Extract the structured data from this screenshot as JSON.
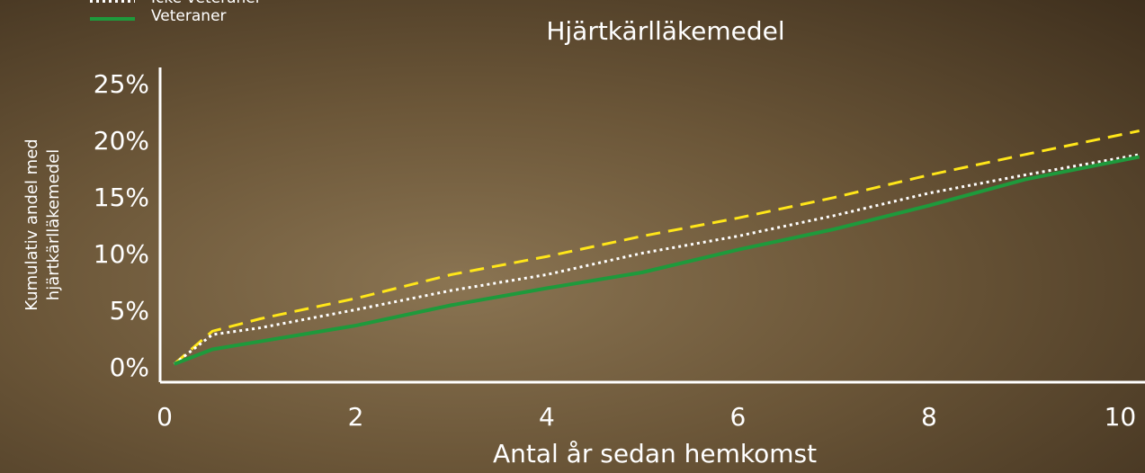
{
  "chart_data": {
    "type": "line",
    "title": "Hjärtkärlläkemedel",
    "xlabel": "Antal år sedan hemkomst",
    "ylabel": [
      "Kumulativ andel med",
      "hjärtkärlläkemedel"
    ],
    "x": [
      0.1,
      0.5,
      1,
      2,
      3,
      4,
      5,
      6,
      7,
      8,
      9,
      10.2
    ],
    "series": [
      {
        "color": "#ffe619",
        "dash": "dashed",
        "values": [
          0.4,
          3.3,
          4.4,
          6.2,
          8.3,
          9.9,
          11.7,
          13.3,
          15.1,
          17.1,
          18.9,
          21.0
        ]
      },
      {
        "name": "Icke veteraner",
        "color": "#ffffff",
        "dash": "dotted",
        "values": [
          0.4,
          3.0,
          3.6,
          5.2,
          6.9,
          8.3,
          10.2,
          11.7,
          13.5,
          15.5,
          17.1,
          18.9
        ]
      },
      {
        "name": "Veteraner",
        "color": "#1e9a3c",
        "dash": "solid",
        "values": [
          0.4,
          1.7,
          2.4,
          3.8,
          5.6,
          7.1,
          8.5,
          10.5,
          12.3,
          14.4,
          16.7,
          18.7
        ]
      }
    ],
    "xlim": [
      0,
      10.25
    ],
    "ylim": [
      -1.2,
      26.6
    ],
    "xticks": [
      0,
      2,
      4,
      6,
      8,
      10
    ],
    "yticks": [
      {
        "value": 0,
        "label": "0%"
      },
      {
        "value": 5,
        "label": "5%"
      },
      {
        "value": 10,
        "label": "10%"
      },
      {
        "value": 15,
        "label": "15%"
      },
      {
        "value": 20,
        "label": "20%"
      },
      {
        "value": 25,
        "label": "25%"
      }
    ]
  }
}
